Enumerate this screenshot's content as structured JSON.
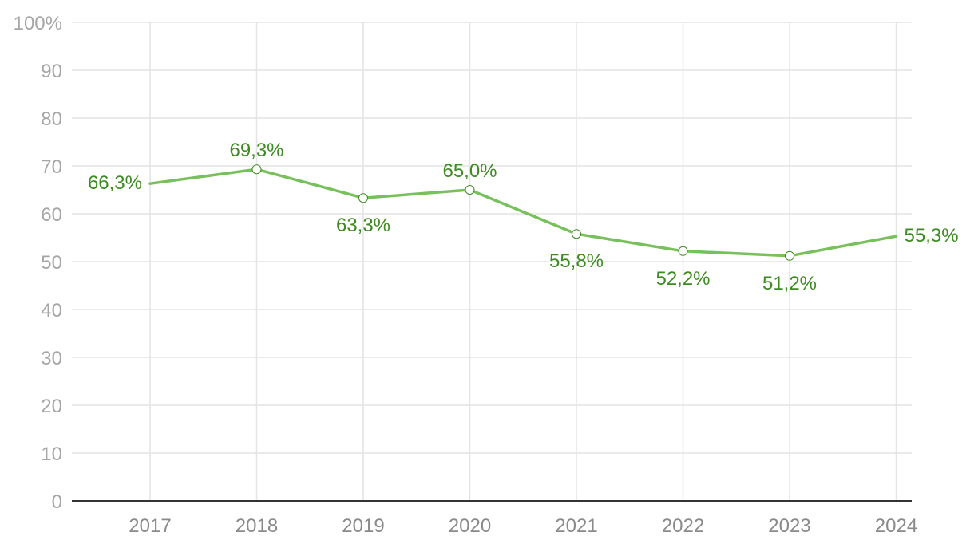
{
  "chart_data": {
    "type": "line",
    "categories": [
      "2017",
      "2018",
      "2019",
      "2020",
      "2021",
      "2022",
      "2023",
      "2024"
    ],
    "values": [
      66.3,
      69.3,
      63.3,
      65.0,
      55.8,
      52.2,
      51.2,
      55.3
    ],
    "data_labels": [
      "66,3%",
      "69,3%",
      "63,3%",
      "65,0%",
      "55,8%",
      "52,2%",
      "51,2%",
      "55,3%"
    ],
    "y_ticks": [
      "0",
      "10",
      "20",
      "30",
      "40",
      "50",
      "60",
      "70",
      "80",
      "90",
      "100%"
    ],
    "ylim": [
      0,
      100
    ],
    "title": "",
    "xlabel": "",
    "ylabel": "",
    "grid": true,
    "legend": "none",
    "colors": {
      "line": "#77c05c",
      "label": "#3d8b22",
      "marker": "#3d8b22"
    }
  }
}
